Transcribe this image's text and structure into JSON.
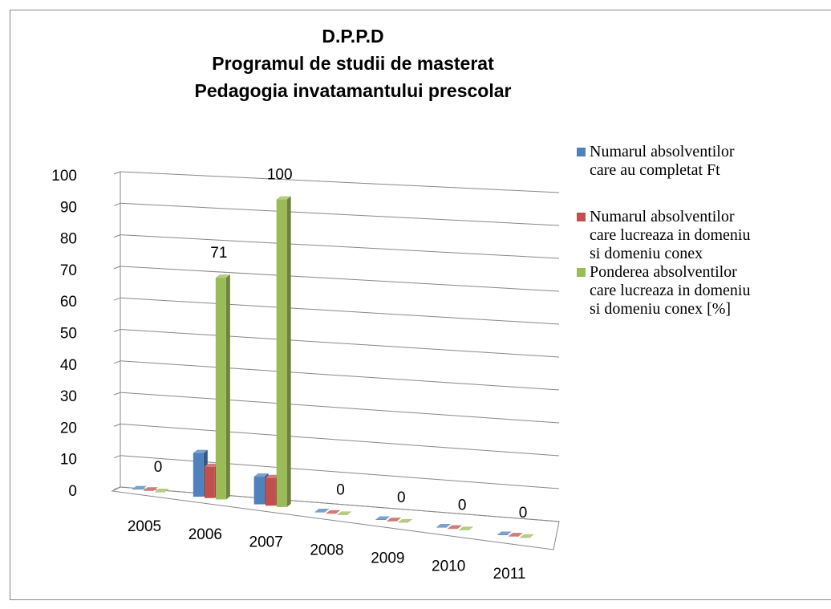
{
  "chart_data": {
    "type": "bar3d",
    "title": "D.P.P.D\nProgramul de studii de masterat\nPedagogia invatamantului prescolar",
    "categories": [
      "2005",
      "2006",
      "2007",
      "2008",
      "2009",
      "2010",
      "2011"
    ],
    "series": [
      {
        "name": "Numarul absolventilor\ncare au completat Ft",
        "color": "#4f81bd",
        "values": [
          0,
          14,
          9,
          0,
          0,
          0,
          0
        ]
      },
      {
        "name": "Numarul absolventilor\ncare  lucreaza in domeniu\nsi domeniu conex",
        "color": "#c0504d",
        "values": [
          0,
          10,
          9,
          0,
          0,
          0,
          0
        ]
      },
      {
        "name": "Ponderea absolventilor\ncare  lucreaza in domeniu\nsi domeniu conex [%]",
        "color": "#9bbb59",
        "values": [
          0,
          71,
          100,
          0,
          0,
          0,
          0
        ]
      }
    ],
    "data_labels_series": 2,
    "ylim": [
      0,
      100
    ],
    "yticks": [
      0,
      10,
      20,
      30,
      40,
      50,
      60,
      70,
      80,
      90,
      100
    ],
    "grid": true,
    "legend": "right"
  }
}
